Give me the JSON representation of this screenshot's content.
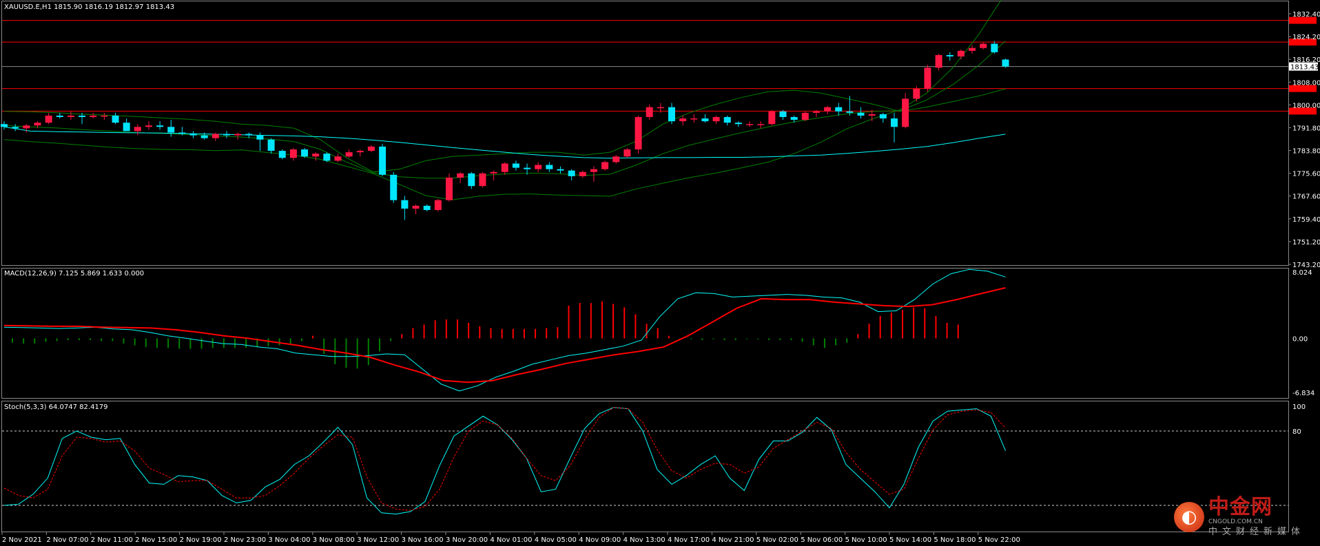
{
  "main_panel": {
    "header": "XAUUSD.E,H1  1815.90 1816.19 1812.97 1813.43",
    "price_axis": [
      "1832.40",
      "1824.20",
      "1816.20",
      "1808.00",
      "1800.00",
      "1791.80",
      "1783.80",
      "1775.60",
      "1767.60",
      "1759.40",
      "1751.20",
      "1743.20"
    ],
    "current_price_tag": "1813.43"
  },
  "macd_panel": {
    "header": "MACD(12,26,9) 7.125 5.869 1.633 0.000",
    "axis": [
      "8.024",
      "0.00",
      "-6.834"
    ]
  },
  "stoch_panel": {
    "header": "Stoch(5,3,3) 64.0747 82.4179",
    "axis": [
      "100",
      "80",
      "20"
    ]
  },
  "time_axis": [
    "2 Nov 2021",
    "2 Nov 07:00",
    "2 Nov 11:00",
    "2 Nov 15:00",
    "2 Nov 19:00",
    "2 Nov 23:00",
    "3 Nov 04:00",
    "3 Nov 08:00",
    "3 Nov 12:00",
    "3 Nov 16:00",
    "3 Nov 20:00",
    "4 Nov 01:00",
    "4 Nov 05:00",
    "4 Nov 09:00",
    "4 Nov 13:00",
    "4 Nov 17:00",
    "4 Nov 21:00",
    "5 Nov 02:00",
    "5 Nov 06:00",
    "5 Nov 10:00",
    "5 Nov 14:00",
    "5 Nov 18:00",
    "5 Nov 22:00"
  ],
  "watermark": {
    "logo_glyph": "◐",
    "name": "中金网",
    "domain": "CNGOLD.COM.CN",
    "tagline": "中文财经新媒体"
  },
  "colors": {
    "bull": "#ff1744",
    "bear": "#00e5ff",
    "ma": "#00ffff",
    "bands": "#008000",
    "signal": "#ff0000",
    "hline": "#ff0000"
  },
  "chart_data": [
    {
      "type": "candlestick",
      "title": "XAUUSD.E,H1",
      "ylim": [
        1743.2,
        1836.3
      ],
      "horizontal_levels": [
        1829.8,
        1822.1,
        1805.6,
        1797.6
      ],
      "candles": [
        [
          1793.0,
          1794.0,
          1791.0,
          1792.0
        ],
        [
          1792.0,
          1793.0,
          1790.5,
          1791.5
        ],
        [
          1791.5,
          1793.0,
          1790.0,
          1792.5
        ],
        [
          1792.5,
          1794.0,
          1791.5,
          1793.5
        ],
        [
          1793.5,
          1797.0,
          1793.0,
          1796.0
        ],
        [
          1796.0,
          1797.0,
          1795.0,
          1795.5
        ],
        [
          1795.5,
          1797.5,
          1794.5,
          1796.0
        ],
        [
          1796.0,
          1797.0,
          1793.0,
          1795.5
        ],
        [
          1795.5,
          1797.0,
          1795.0,
          1796.0
        ],
        [
          1796.0,
          1797.0,
          1794.5,
          1796.0
        ],
        [
          1796.0,
          1797.0,
          1793.0,
          1793.5
        ],
        [
          1793.5,
          1795.0,
          1791.0,
          1790.5
        ],
        [
          1790.5,
          1793.0,
          1789.0,
          1792.0
        ],
        [
          1792.0,
          1794.0,
          1791.0,
          1792.5
        ],
        [
          1792.5,
          1794.0,
          1791.0,
          1792.0
        ],
        [
          1792.0,
          1794.5,
          1788.5,
          1790.0
        ],
        [
          1790.0,
          1792.0,
          1789.0,
          1789.5
        ],
        [
          1789.5,
          1790.5,
          1788.0,
          1789.0
        ],
        [
          1789.0,
          1790.0,
          1787.5,
          1788.0
        ],
        [
          1788.0,
          1790.0,
          1787.0,
          1789.5
        ],
        [
          1789.5,
          1790.5,
          1788.0,
          1789.0
        ],
        [
          1789.0,
          1790.0,
          1787.5,
          1789.5
        ],
        [
          1789.5,
          1790.0,
          1788.0,
          1789.0
        ],
        [
          1789.0,
          1790.0,
          1783.5,
          1787.5
        ],
        [
          1787.5,
          1788.0,
          1782.5,
          1783.5
        ],
        [
          1783.5,
          1784.0,
          1780.5,
          1781.0
        ],
        [
          1781.0,
          1784.5,
          1780.0,
          1784.0
        ],
        [
          1784.0,
          1784.5,
          1781.0,
          1781.5
        ],
        [
          1781.5,
          1783.0,
          1780.0,
          1782.5
        ],
        [
          1782.5,
          1783.0,
          1779.5,
          1780.0
        ],
        [
          1780.0,
          1782.5,
          1779.5,
          1781.5
        ],
        [
          1781.5,
          1784.0,
          1781.0,
          1783.0
        ],
        [
          1783.0,
          1784.0,
          1781.5,
          1783.5
        ],
        [
          1783.5,
          1785.5,
          1783.0,
          1785.0
        ],
        [
          1785.0,
          1786.0,
          1774.5,
          1775.0
        ],
        [
          1775.0,
          1776.0,
          1765.0,
          1766.0
        ],
        [
          1766.0,
          1767.5,
          1759.0,
          1763.0
        ],
        [
          1763.0,
          1764.5,
          1761.0,
          1764.0
        ],
        [
          1764.0,
          1764.5,
          1762.0,
          1762.5
        ],
        [
          1762.5,
          1766.5,
          1762.0,
          1766.0
        ],
        [
          1766.0,
          1775.5,
          1765.5,
          1774.0
        ],
        [
          1774.0,
          1776.0,
          1772.0,
          1775.5
        ],
        [
          1775.5,
          1776.0,
          1770.0,
          1771.0
        ],
        [
          1771.0,
          1776.0,
          1770.5,
          1775.5
        ],
        [
          1775.5,
          1776.5,
          1773.0,
          1776.0
        ],
        [
          1776.0,
          1779.5,
          1775.0,
          1779.0
        ],
        [
          1779.0,
          1780.0,
          1776.5,
          1777.5
        ],
        [
          1777.5,
          1779.0,
          1775.0,
          1777.0
        ],
        [
          1777.0,
          1779.5,
          1776.0,
          1778.5
        ],
        [
          1778.5,
          1779.5,
          1776.0,
          1777.0
        ],
        [
          1777.0,
          1778.0,
          1775.5,
          1776.5
        ],
        [
          1776.5,
          1777.0,
          1773.0,
          1774.5
        ],
        [
          1774.5,
          1776.5,
          1774.0,
          1776.0
        ],
        [
          1776.0,
          1778.0,
          1772.5,
          1777.0
        ],
        [
          1777.0,
          1780.0,
          1776.5,
          1779.5
        ],
        [
          1779.5,
          1782.0,
          1779.0,
          1781.5
        ],
        [
          1781.5,
          1784.5,
          1781.0,
          1784.0
        ],
        [
          1784.0,
          1796.0,
          1782.5,
          1795.5
        ],
        [
          1795.5,
          1800.0,
          1794.5,
          1799.0
        ],
        [
          1799.0,
          1800.5,
          1797.0,
          1799.0
        ],
        [
          1799.0,
          1800.5,
          1793.0,
          1794.0
        ],
        [
          1794.0,
          1796.0,
          1792.5,
          1795.0
        ],
        [
          1795.0,
          1796.5,
          1793.5,
          1795.0
        ],
        [
          1795.0,
          1796.5,
          1793.5,
          1794.0
        ],
        [
          1794.0,
          1796.0,
          1793.0,
          1795.5
        ],
        [
          1795.5,
          1796.0,
          1792.5,
          1793.5
        ],
        [
          1793.5,
          1794.0,
          1792.0,
          1793.0
        ],
        [
          1793.0,
          1794.0,
          1792.0,
          1793.0
        ],
        [
          1793.0,
          1794.0,
          1791.5,
          1793.0
        ],
        [
          1793.0,
          1798.0,
          1792.5,
          1797.5
        ],
        [
          1797.5,
          1798.0,
          1794.5,
          1795.5
        ],
        [
          1795.5,
          1796.0,
          1793.5,
          1794.5
        ],
        [
          1794.5,
          1797.5,
          1794.0,
          1797.0
        ],
        [
          1797.0,
          1798.0,
          1795.5,
          1797.5
        ],
        [
          1797.5,
          1799.5,
          1796.5,
          1799.0
        ],
        [
          1799.0,
          1800.5,
          1796.0,
          1797.5
        ],
        [
          1797.5,
          1803.0,
          1796.0,
          1797.0
        ],
        [
          1797.0,
          1799.0,
          1795.0,
          1796.0
        ],
        [
          1796.0,
          1798.0,
          1794.0,
          1796.5
        ],
        [
          1796.5,
          1797.0,
          1793.5,
          1795.0
        ],
        [
          1795.0,
          1797.0,
          1786.5,
          1792.0
        ],
        [
          1792.0,
          1804.0,
          1791.5,
          1802.0
        ],
        [
          1802.0,
          1806.5,
          1801.0,
          1805.5
        ],
        [
          1805.5,
          1814.0,
          1804.5,
          1813.0
        ],
        [
          1813.0,
          1818.0,
          1812.0,
          1817.5
        ],
        [
          1817.5,
          1818.5,
          1815.5,
          1817.0
        ],
        [
          1817.0,
          1819.5,
          1816.0,
          1819.0
        ],
        [
          1819.0,
          1821.0,
          1818.0,
          1820.0
        ],
        [
          1820.0,
          1822.0,
          1819.5,
          1821.5
        ],
        [
          1821.5,
          1822.5,
          1818.0,
          1818.5
        ],
        [
          1815.9,
          1816.19,
          1812.97,
          1813.43
        ]
      ],
      "ma_line": [
        1792.0,
        1790.5,
        1790.3,
        1790.2,
        1790.0,
        1789.9,
        1789.8,
        1789.6,
        1789.4,
        1789.2,
        1789.0,
        1788.8,
        1788.5,
        1788.0,
        1787.3,
        1786.5,
        1785.6,
        1784.7,
        1783.8,
        1783.0,
        1782.2,
        1781.6,
        1781.1,
        1780.9,
        1781.0,
        1781.1,
        1781.1,
        1781.2,
        1781.2,
        1781.4,
        1781.7,
        1782.0,
        1782.6,
        1783.3,
        1784.1,
        1785.0,
        1786.4,
        1788.0,
        1789.4
      ],
      "bb_upper": [
        1797.5,
        1797.4,
        1797.0,
        1796.5,
        1796.1,
        1795.7,
        1795.2,
        1794.7,
        1794.0,
        1793.0,
        1792.5,
        1791.5,
        1787.5,
        1781.0,
        1776.0,
        1777.0,
        1780.0,
        1781.5,
        1782.0,
        1782.5,
        1783.0,
        1783.0,
        1782.0,
        1783.0,
        1787.0,
        1793.0,
        1797.0,
        1800.0,
        1802.5,
        1804.5,
        1805.0,
        1804.0,
        1802.0,
        1800.0,
        1797.5,
        1799.0,
        1801.0,
        1803.0,
        1805.5
      ],
      "bb_mid": [
        1792.5,
        1792.0,
        1791.6,
        1791.0,
        1790.5,
        1790.0,
        1789.7,
        1789.3,
        1788.8,
        1788.4,
        1787.7,
        1786.8,
        1784.0,
        1779.5,
        1775.7,
        1774.3,
        1773.8,
        1773.8,
        1774.7,
        1775.3,
        1775.6,
        1775.4,
        1774.8,
        1775.2,
        1778.5,
        1782.5,
        1785.5,
        1787.8,
        1790.0,
        1792.0,
        1793.8,
        1795.3,
        1796.7,
        1797.5,
        1797.8,
        1801.5,
        1807.0,
        1814.0,
        1822.5
      ],
      "bb_lower": [
        1787.5,
        1786.8,
        1786.2,
        1785.5,
        1784.8,
        1784.3,
        1784.0,
        1783.9,
        1783.6,
        1783.8,
        1782.9,
        1782.0,
        1780.5,
        1778.0,
        1775.4,
        1771.6,
        1767.6,
        1766.1,
        1767.4,
        1768.1,
        1768.2,
        1767.8,
        1767.6,
        1767.4,
        1770.0,
        1772.0,
        1774.0,
        1775.6,
        1777.5,
        1779.5,
        1782.6,
        1786.6,
        1791.4,
        1795.0,
        1798.1,
        1803.9,
        1813.0,
        1825.0,
        1839.5
      ]
    },
    {
      "type": "macd",
      "title": "MACD(12,26,9)",
      "ylim": [
        -6.834,
        8.024
      ],
      "histogram": [
        -0.5,
        -0.6,
        -0.6,
        -0.4,
        -0.3,
        -0.2,
        -0.2,
        -0.2,
        -0.3,
        -0.3,
        -0.6,
        -0.8,
        -1.0,
        -1.1,
        -1.1,
        -1.2,
        -1.2,
        -1.2,
        -1.1,
        -1.1,
        -1.1,
        -1.1,
        -1.0,
        -0.9,
        -0.8,
        -0.6,
        -0.3,
        0.3,
        -1.8,
        -3.0,
        -3.4,
        -3.5,
        -3.1,
        -1.5,
        -0.3,
        0.5,
        1.2,
        1.6,
        2.1,
        2.2,
        2.2,
        1.8,
        1.4,
        1.2,
        1.1,
        1.1,
        1.1,
        1.1,
        1.2,
        1.3,
        3.8,
        4.1,
        4.1,
        4.3,
        4.0,
        3.6,
        2.8,
        1.7,
        1.2,
        0.3,
        -0.1,
        -0.1,
        -0.2,
        -0.1,
        -0.2,
        -0.2,
        -0.1,
        -0.1,
        -0.2,
        -0.2,
        -0.2,
        -0.4,
        -0.8,
        -1.1,
        -0.8,
        -0.5,
        0.5,
        1.7,
        2.6,
        3.0,
        3.3,
        3.6,
        3.5,
        2.6,
        1.8,
        1.6
      ],
      "macd_line": [
        1.3,
        1.25,
        1.2,
        1.15,
        1.2,
        1.3,
        1.1,
        1.0,
        0.7,
        0.3,
        0.0,
        -0.3,
        -0.6,
        -0.7,
        -1.0,
        -1.2,
        -1.7,
        -1.9,
        -2.1,
        -2.1,
        -2.0,
        -1.8,
        -1.9,
        -3.6,
        -5.3,
        -6.1,
        -5.5,
        -4.5,
        -3.8,
        -3.0,
        -2.5,
        -2.0,
        -1.7,
        -1.3,
        -0.9,
        -0.2,
        2.5,
        4.6,
        5.3,
        5.2,
        4.8,
        4.9,
        5.0,
        5.1,
        5.0,
        4.8,
        4.7,
        4.2,
        3.1,
        3.2,
        4.5,
        6.3,
        7.5,
        8.0,
        7.8,
        7.125
      ],
      "signal_line": [
        1.5,
        1.45,
        1.4,
        1.4,
        1.3,
        1.25,
        1.2,
        1.0,
        0.7,
        0.3,
        0.0,
        -0.4,
        -0.8,
        -1.3,
        -1.7,
        -2.2,
        -3.1,
        -3.9,
        -4.9,
        -5.1,
        -4.9,
        -4.2,
        -3.6,
        -2.9,
        -2.4,
        -1.9,
        -1.5,
        -1.0,
        0.3,
        1.9,
        3.5,
        4.6,
        4.5,
        4.5,
        4.2,
        4.0,
        3.8,
        3.7,
        3.9,
        4.5,
        5.2,
        5.869
      ]
    },
    {
      "type": "stochastic",
      "title": "Stoch(5,3,3)",
      "ylim": [
        0,
        100
      ],
      "levels": [
        80,
        20
      ],
      "main_line": [
        20,
        21,
        29,
        42,
        74,
        80,
        75,
        73,
        74,
        53,
        38,
        37,
        44,
        43,
        40,
        28,
        22,
        24,
        35,
        41,
        53,
        60,
        71,
        83,
        69,
        26,
        14,
        13,
        15,
        23,
        52,
        76,
        84,
        92,
        85,
        73,
        58,
        31,
        33,
        58,
        82,
        94,
        99,
        98,
        80,
        49,
        37,
        44,
        53,
        60,
        42,
        32,
        57,
        72,
        72,
        79,
        91,
        81,
        53,
        42,
        31,
        18,
        37,
        67,
        88,
        96,
        97,
        98,
        92,
        64.07
      ],
      "signal_line": [
        34,
        28,
        26,
        33,
        60,
        75,
        74,
        71,
        72,
        64,
        50,
        45,
        39,
        40,
        40,
        33,
        26,
        26,
        28,
        36,
        46,
        58,
        68,
        77,
        75,
        43,
        22,
        17,
        16,
        19,
        33,
        59,
        80,
        88,
        85,
        74,
        58,
        44,
        40,
        52,
        73,
        91,
        99,
        98,
        87,
        65,
        48,
        42,
        49,
        54,
        53,
        46,
        51,
        66,
        73,
        80,
        87,
        82,
        63,
        49,
        39,
        29,
        33,
        58,
        81,
        93,
        96,
        97,
        95,
        82.42
      ]
    }
  ]
}
